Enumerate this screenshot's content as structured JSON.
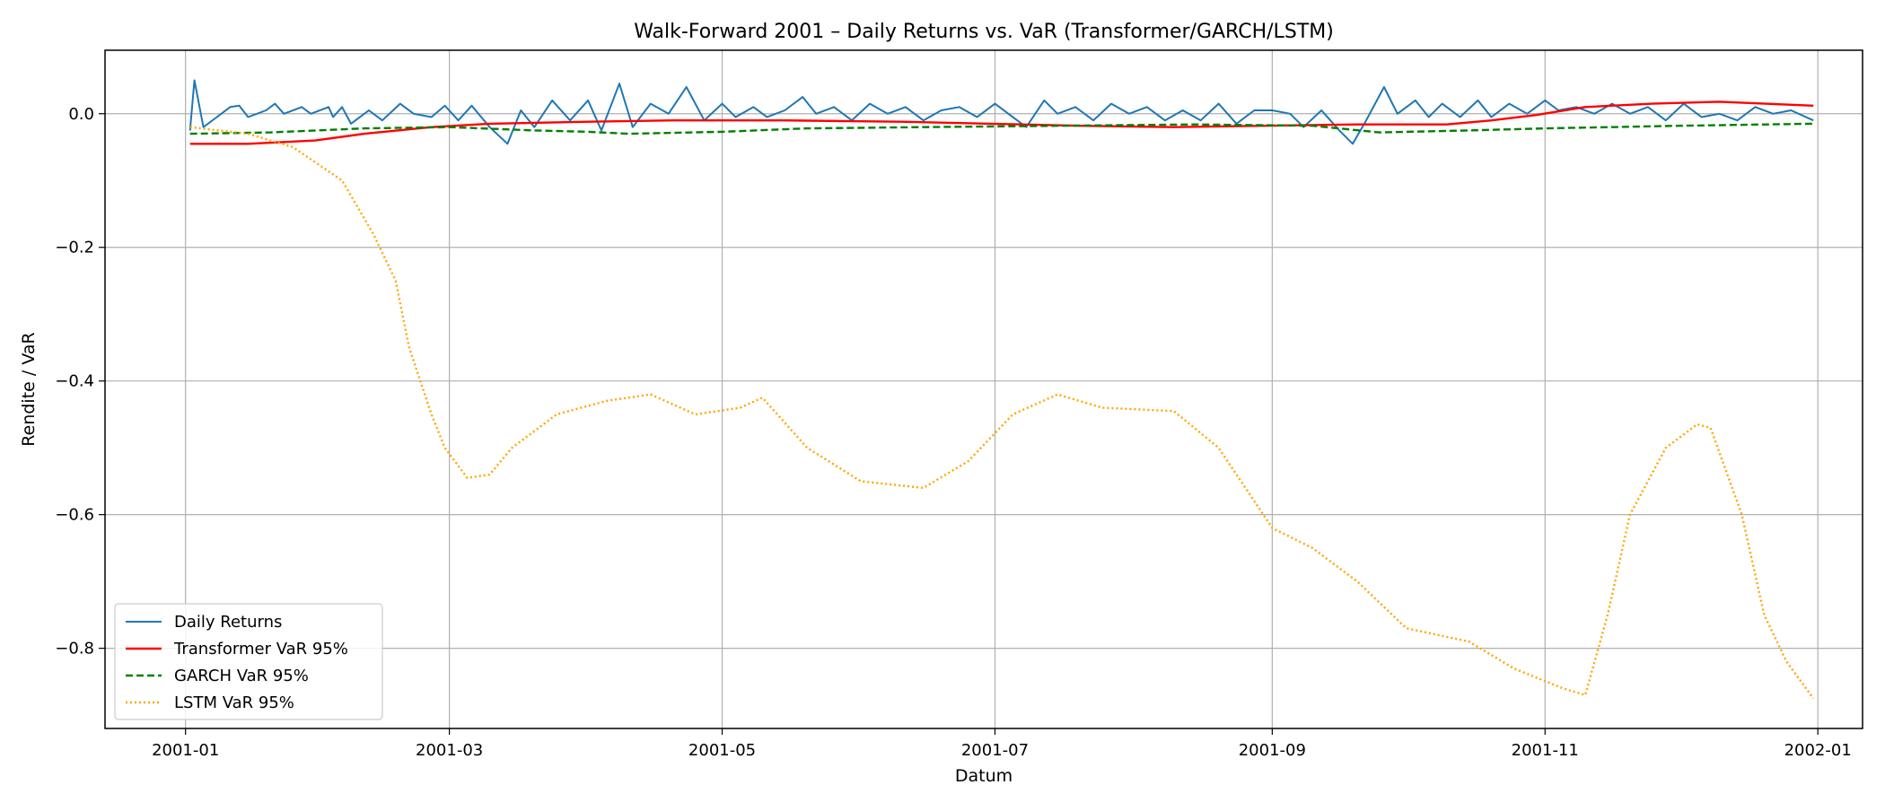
{
  "chart_data": {
    "type": "line",
    "title": "Walk-Forward 2001 – Daily Returns vs. VaR (Transformer/GARCH/LSTM)",
    "xlabel": "Datum",
    "ylabel": "Rendite / VaR",
    "x_type": "date",
    "xlim": [
      "2000-12-14",
      "2002-01-11"
    ],
    "ylim": [
      -0.92,
      0.095
    ],
    "x_ticks": [
      "2001-01-01",
      "2001-03-01",
      "2001-05-01",
      "2001-07-01",
      "2001-09-01",
      "2001-11-01",
      "2002-01-01"
    ],
    "x_tick_labels": [
      "2001-01",
      "2001-03",
      "2001-05",
      "2001-07",
      "2001-09",
      "2001-11",
      "2002-01"
    ],
    "y_ticks": [
      0.0,
      -0.2,
      -0.4,
      -0.6,
      -0.8
    ],
    "y_tick_labels": [
      "0.0",
      "−0.2",
      "−0.4",
      "−0.6",
      "−0.8"
    ],
    "grid": true,
    "legend_position": "lower-left",
    "series": [
      {
        "name": "Daily Returns",
        "color": "#1f77b4",
        "style": "solid",
        "points": [
          [
            "2001-01-02",
            -0.025
          ],
          [
            "2001-01-03",
            0.05
          ],
          [
            "2001-01-05",
            -0.02
          ],
          [
            "2001-01-08",
            -0.005
          ],
          [
            "2001-01-11",
            0.01
          ],
          [
            "2001-01-13",
            0.012
          ],
          [
            "2001-01-15",
            -0.005
          ],
          [
            "2001-01-19",
            0.005
          ],
          [
            "2001-01-21",
            0.015
          ],
          [
            "2001-01-23",
            0.0
          ],
          [
            "2001-01-27",
            0.01
          ],
          [
            "2001-01-29",
            0.0
          ],
          [
            "2001-02-02",
            0.01
          ],
          [
            "2001-02-03",
            -0.005
          ],
          [
            "2001-02-05",
            0.01
          ],
          [
            "2001-02-07",
            -0.015
          ],
          [
            "2001-02-11",
            0.005
          ],
          [
            "2001-02-14",
            -0.01
          ],
          [
            "2001-02-18",
            0.015
          ],
          [
            "2001-02-21",
            0.0
          ],
          [
            "2001-02-25",
            -0.005
          ],
          [
            "2001-02-28",
            0.012
          ],
          [
            "2001-03-03",
            -0.01
          ],
          [
            "2001-03-06",
            0.012
          ],
          [
            "2001-03-10",
            -0.02
          ],
          [
            "2001-03-14",
            -0.045
          ],
          [
            "2001-03-17",
            0.005
          ],
          [
            "2001-03-20",
            -0.02
          ],
          [
            "2001-03-24",
            0.02
          ],
          [
            "2001-03-28",
            -0.01
          ],
          [
            "2001-04-01",
            0.02
          ],
          [
            "2001-04-04",
            -0.025
          ],
          [
            "2001-04-08",
            0.045
          ],
          [
            "2001-04-11",
            -0.02
          ],
          [
            "2001-04-15",
            0.015
          ],
          [
            "2001-04-19",
            0.0
          ],
          [
            "2001-04-23",
            0.04
          ],
          [
            "2001-04-27",
            -0.01
          ],
          [
            "2001-05-01",
            0.015
          ],
          [
            "2001-05-04",
            -0.005
          ],
          [
            "2001-05-08",
            0.01
          ],
          [
            "2001-05-11",
            -0.005
          ],
          [
            "2001-05-15",
            0.005
          ],
          [
            "2001-05-19",
            0.025
          ],
          [
            "2001-05-22",
            0.0
          ],
          [
            "2001-05-26",
            0.01
          ],
          [
            "2001-05-30",
            -0.01
          ],
          [
            "2001-06-03",
            0.015
          ],
          [
            "2001-06-07",
            0.0
          ],
          [
            "2001-06-11",
            0.01
          ],
          [
            "2001-06-15",
            -0.01
          ],
          [
            "2001-06-19",
            0.005
          ],
          [
            "2001-06-23",
            0.01
          ],
          [
            "2001-06-27",
            -0.005
          ],
          [
            "2001-07-01",
            0.015
          ],
          [
            "2001-07-04",
            0.0
          ],
          [
            "2001-07-08",
            -0.02
          ],
          [
            "2001-07-12",
            0.02
          ],
          [
            "2001-07-15",
            0.0
          ],
          [
            "2001-07-19",
            0.01
          ],
          [
            "2001-07-23",
            -0.01
          ],
          [
            "2001-07-27",
            0.015
          ],
          [
            "2001-07-31",
            0.0
          ],
          [
            "2001-08-04",
            0.01
          ],
          [
            "2001-08-08",
            -0.01
          ],
          [
            "2001-08-12",
            0.005
          ],
          [
            "2001-08-16",
            -0.01
          ],
          [
            "2001-08-20",
            0.015
          ],
          [
            "2001-08-24",
            -0.015
          ],
          [
            "2001-08-28",
            0.005
          ],
          [
            "2001-09-01",
            0.005
          ],
          [
            "2001-09-05",
            0.0
          ],
          [
            "2001-09-08",
            -0.02
          ],
          [
            "2001-09-12",
            0.005
          ],
          [
            "2001-09-16",
            -0.025
          ],
          [
            "2001-09-19",
            -0.045
          ],
          [
            "2001-09-22",
            -0.01
          ],
          [
            "2001-09-26",
            0.04
          ],
          [
            "2001-09-29",
            0.0
          ],
          [
            "2001-10-03",
            0.02
          ],
          [
            "2001-10-06",
            -0.005
          ],
          [
            "2001-10-09",
            0.015
          ],
          [
            "2001-10-13",
            -0.005
          ],
          [
            "2001-10-17",
            0.02
          ],
          [
            "2001-10-20",
            -0.005
          ],
          [
            "2001-10-24",
            0.015
          ],
          [
            "2001-10-28",
            0.0
          ],
          [
            "2001-11-01",
            0.02
          ],
          [
            "2001-11-04",
            0.005
          ],
          [
            "2001-11-08",
            0.01
          ],
          [
            "2001-11-12",
            0.0
          ],
          [
            "2001-11-16",
            0.015
          ],
          [
            "2001-11-20",
            0.0
          ],
          [
            "2001-11-24",
            0.01
          ],
          [
            "2001-11-28",
            -0.01
          ],
          [
            "2001-12-02",
            0.015
          ],
          [
            "2001-12-06",
            -0.005
          ],
          [
            "2001-12-10",
            0.0
          ],
          [
            "2001-12-14",
            -0.01
          ],
          [
            "2001-12-18",
            0.01
          ],
          [
            "2001-12-22",
            0.0
          ],
          [
            "2001-12-26",
            0.005
          ],
          [
            "2001-12-31",
            -0.01
          ]
        ]
      },
      {
        "name": "Transformer VaR 95%",
        "color": "#ff0000",
        "style": "solid",
        "points": [
          [
            "2001-01-02",
            -0.045
          ],
          [
            "2001-01-15",
            -0.045
          ],
          [
            "2001-01-30",
            -0.04
          ],
          [
            "2001-02-10",
            -0.03
          ],
          [
            "2001-02-25",
            -0.02
          ],
          [
            "2001-03-10",
            -0.015
          ],
          [
            "2001-04-01",
            -0.012
          ],
          [
            "2001-04-20",
            -0.01
          ],
          [
            "2001-05-15",
            -0.01
          ],
          [
            "2001-06-10",
            -0.012
          ],
          [
            "2001-06-30",
            -0.015
          ],
          [
            "2001-07-20",
            -0.018
          ],
          [
            "2001-08-10",
            -0.02
          ],
          [
            "2001-08-30",
            -0.018
          ],
          [
            "2001-09-20",
            -0.016
          ],
          [
            "2001-10-10",
            -0.016
          ],
          [
            "2001-10-20",
            -0.01
          ],
          [
            "2001-10-30",
            -0.002
          ],
          [
            "2001-11-10",
            0.01
          ],
          [
            "2001-11-25",
            0.015
          ],
          [
            "2001-12-10",
            0.018
          ],
          [
            "2001-12-31",
            0.012
          ]
        ]
      },
      {
        "name": "GARCH VaR 95%",
        "color": "#008000",
        "style": "dashed",
        "points": [
          [
            "2001-01-02",
            -0.03
          ],
          [
            "2001-01-20",
            -0.028
          ],
          [
            "2001-02-10",
            -0.022
          ],
          [
            "2001-03-01",
            -0.02
          ],
          [
            "2001-03-20",
            -0.025
          ],
          [
            "2001-04-01",
            -0.027
          ],
          [
            "2001-04-10",
            -0.03
          ],
          [
            "2001-05-01",
            -0.027
          ],
          [
            "2001-05-20",
            -0.022
          ],
          [
            "2001-06-15",
            -0.02
          ],
          [
            "2001-07-15",
            -0.018
          ],
          [
            "2001-08-15",
            -0.016
          ],
          [
            "2001-09-10",
            -0.018
          ],
          [
            "2001-09-25",
            -0.028
          ],
          [
            "2001-10-15",
            -0.025
          ],
          [
            "2001-11-01",
            -0.022
          ],
          [
            "2001-12-01",
            -0.018
          ],
          [
            "2001-12-31",
            -0.015
          ]
        ]
      },
      {
        "name": "LSTM VaR 95%",
        "color": "#ffa500",
        "style": "dotted",
        "points": [
          [
            "2001-01-02",
            -0.02
          ],
          [
            "2001-01-15",
            -0.03
          ],
          [
            "2001-01-25",
            -0.05
          ],
          [
            "2001-02-05",
            -0.1
          ],
          [
            "2001-02-12",
            -0.18
          ],
          [
            "2001-02-17",
            -0.25
          ],
          [
            "2001-02-20",
            -0.35
          ],
          [
            "2001-02-25",
            -0.45
          ],
          [
            "2001-02-28",
            -0.5
          ],
          [
            "2001-03-05",
            -0.545
          ],
          [
            "2001-03-10",
            -0.54
          ],
          [
            "2001-03-15",
            -0.5
          ],
          [
            "2001-03-25",
            -0.45
          ],
          [
            "2001-04-05",
            -0.43
          ],
          [
            "2001-04-15",
            -0.42
          ],
          [
            "2001-04-25",
            -0.45
          ],
          [
            "2001-05-05",
            -0.44
          ],
          [
            "2001-05-10",
            -0.425
          ],
          [
            "2001-05-20",
            -0.5
          ],
          [
            "2001-06-01",
            -0.55
          ],
          [
            "2001-06-15",
            -0.56
          ],
          [
            "2001-06-25",
            -0.52
          ],
          [
            "2001-07-05",
            -0.45
          ],
          [
            "2001-07-15",
            -0.42
          ],
          [
            "2001-07-25",
            -0.44
          ],
          [
            "2001-08-10",
            -0.445
          ],
          [
            "2001-08-20",
            -0.5
          ],
          [
            "2001-09-01",
            -0.62
          ],
          [
            "2001-09-10",
            -0.65
          ],
          [
            "2001-09-20",
            -0.7
          ],
          [
            "2001-10-01",
            -0.77
          ],
          [
            "2001-10-15",
            -0.79
          ],
          [
            "2001-10-25",
            -0.83
          ],
          [
            "2001-11-05",
            -0.86
          ],
          [
            "2001-11-10",
            -0.87
          ],
          [
            "2001-11-15",
            -0.75
          ],
          [
            "2001-11-20",
            -0.6
          ],
          [
            "2001-11-28",
            -0.5
          ],
          [
            "2001-12-05",
            -0.465
          ],
          [
            "2001-12-08",
            -0.47
          ],
          [
            "2001-12-15",
            -0.6
          ],
          [
            "2001-12-20",
            -0.75
          ],
          [
            "2001-12-25",
            -0.82
          ],
          [
            "2001-12-31",
            -0.875
          ]
        ]
      }
    ]
  }
}
